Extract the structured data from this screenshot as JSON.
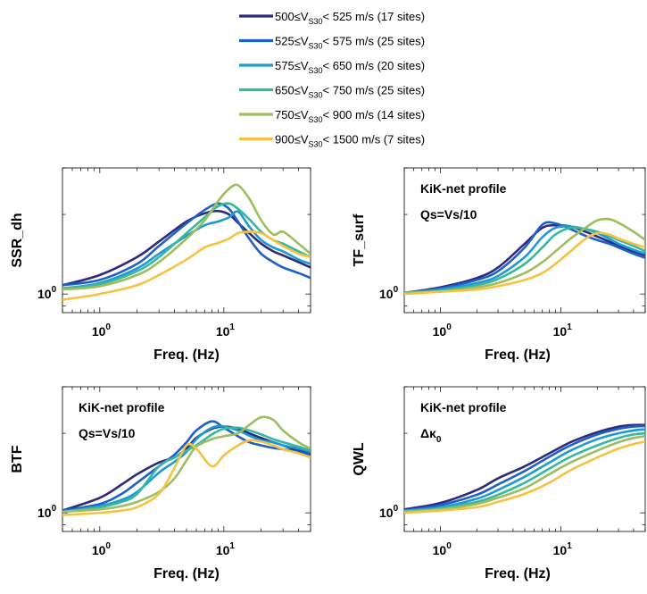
{
  "legend": {
    "entries": [
      {
        "pre": "500≤V",
        "sub": "S30",
        "post": "< 525 m/s (17 sites)"
      },
      {
        "pre": "525≤V",
        "sub": "S30",
        "post": "< 575 m/s (25 sites)"
      },
      {
        "pre": "575≤V",
        "sub": "S30",
        "post": "< 650 m/s (20 sites)"
      },
      {
        "pre": "650≤V",
        "sub": "S30",
        "post": "< 750 m/s (25 sites)"
      },
      {
        "pre": "750≤V",
        "sub": "S30",
        "post": "< 900 m/s (14 sites)"
      },
      {
        "pre": "900≤V",
        "sub": "S30",
        "post": "< 1500 m/s (7 sites)"
      }
    ]
  },
  "colors": [
    "#2e2a7a",
    "#1f5fcc",
    "#1d9ad6",
    "#36b8a0",
    "#9ebd5f",
    "#f5c242"
  ],
  "tick_base": "10",
  "chart_data": [
    {
      "type": "line",
      "ylabel": "SSR_dh",
      "xlabel": "Freq. (Hz)",
      "xscale": "log",
      "yscale": "log",
      "xlim": [
        0.5,
        50
      ],
      "ylim": [
        0.85,
        3.0
      ],
      "xticks": [
        {
          "base": "10",
          "exp": "0",
          "value": 1
        },
        {
          "base": "10",
          "exp": "1",
          "value": 10
        }
      ],
      "yticks": [
        {
          "base": "10",
          "exp": "0",
          "value": 1
        }
      ],
      "annotations": [],
      "x": [
        0.5,
        1,
        2,
        3,
        5,
        7,
        9,
        11,
        13,
        16,
        20,
        25,
        30,
        40,
        50
      ],
      "series": [
        {
          "values": [
            1.08,
            1.18,
            1.38,
            1.58,
            1.88,
            2.02,
            2.06,
            2.0,
            1.86,
            1.7,
            1.55,
            1.45,
            1.4,
            1.32,
            1.26
          ]
        },
        {
          "values": [
            1.08,
            1.13,
            1.3,
            1.52,
            1.85,
            2.08,
            2.2,
            2.1,
            1.88,
            1.62,
            1.42,
            1.32,
            1.26,
            1.2,
            1.15
          ]
        },
        {
          "values": [
            1.05,
            1.1,
            1.25,
            1.42,
            1.66,
            1.82,
            1.88,
            1.95,
            2.05,
            1.8,
            1.6,
            1.5,
            1.45,
            1.35,
            1.3
          ]
        },
        {
          "values": [
            1.05,
            1.09,
            1.22,
            1.38,
            1.7,
            1.95,
            2.15,
            2.2,
            2.1,
            1.92,
            1.72,
            1.6,
            1.55,
            1.45,
            1.38
          ]
        },
        {
          "values": [
            1.04,
            1.07,
            1.18,
            1.32,
            1.62,
            1.9,
            2.25,
            2.5,
            2.58,
            2.3,
            1.9,
            1.68,
            1.72,
            1.55,
            1.42
          ]
        },
        {
          "values": [
            0.95,
            1.0,
            1.08,
            1.18,
            1.35,
            1.5,
            1.56,
            1.62,
            1.7,
            1.72,
            1.7,
            1.6,
            1.52,
            1.42,
            1.38
          ]
        }
      ]
    },
    {
      "type": "line",
      "ylabel": "TF_surf",
      "xlabel": "Freq. (Hz)",
      "xscale": "log",
      "yscale": "log",
      "xlim": [
        0.5,
        50
      ],
      "ylim": [
        0.85,
        3.0
      ],
      "xticks": [
        {
          "base": "10",
          "exp": "0",
          "value": 1
        },
        {
          "base": "10",
          "exp": "1",
          "value": 10
        }
      ],
      "yticks": [
        {
          "base": "10",
          "exp": "0",
          "value": 1
        }
      ],
      "annotations": [
        {
          "text": "KiK-net profile"
        },
        {
          "text": "Qs=Vs/10"
        }
      ],
      "x": [
        0.5,
        1,
        2,
        3,
        5,
        7,
        9,
        12,
        16,
        20,
        25,
        30,
        40,
        50
      ],
      "series": [
        {
          "values": [
            1.01,
            1.06,
            1.15,
            1.26,
            1.55,
            1.78,
            1.82,
            1.8,
            1.72,
            1.65,
            1.58,
            1.52,
            1.45,
            1.4
          ]
        },
        {
          "values": [
            1.01,
            1.05,
            1.13,
            1.22,
            1.5,
            1.83,
            1.85,
            1.76,
            1.66,
            1.6,
            1.55,
            1.5,
            1.42,
            1.37
          ]
        },
        {
          "values": [
            1.01,
            1.04,
            1.1,
            1.17,
            1.38,
            1.64,
            1.78,
            1.8,
            1.76,
            1.7,
            1.62,
            1.55,
            1.47,
            1.42
          ]
        },
        {
          "values": [
            1.01,
            1.03,
            1.08,
            1.14,
            1.3,
            1.5,
            1.68,
            1.78,
            1.76,
            1.72,
            1.66,
            1.6,
            1.52,
            1.45
          ]
        },
        {
          "values": [
            1.01,
            1.02,
            1.06,
            1.1,
            1.2,
            1.32,
            1.45,
            1.62,
            1.78,
            1.9,
            1.92,
            1.86,
            1.72,
            1.6
          ]
        },
        {
          "values": [
            1.0,
            1.02,
            1.04,
            1.07,
            1.13,
            1.2,
            1.3,
            1.45,
            1.62,
            1.7,
            1.68,
            1.62,
            1.55,
            1.5
          ]
        }
      ]
    },
    {
      "type": "line",
      "ylabel": "BTF",
      "xlabel": "Freq. (Hz)",
      "xscale": "log",
      "yscale": "log",
      "xlim": [
        0.5,
        50
      ],
      "ylim": [
        0.85,
        3.0
      ],
      "xticks": [
        {
          "base": "10",
          "exp": "0",
          "value": 1
        },
        {
          "base": "10",
          "exp": "1",
          "value": 10
        }
      ],
      "yticks": [
        {
          "base": "10",
          "exp": "0",
          "value": 1
        }
      ],
      "annotations": [
        {
          "text": "KiK-net profile"
        },
        {
          "text": "Qs=Vs/10"
        }
      ],
      "x": [
        0.5,
        1,
        1.5,
        2,
        3,
        4,
        5,
        6,
        8,
        10,
        13,
        16,
        20,
        25,
        30,
        40,
        50
      ],
      "series": [
        {
          "values": [
            1.02,
            1.14,
            1.28,
            1.4,
            1.55,
            1.62,
            1.75,
            1.92,
            2.08,
            2.12,
            2.08,
            2.0,
            1.92,
            1.85,
            1.8,
            1.72,
            1.68
          ]
        },
        {
          "values": [
            1.02,
            1.08,
            1.18,
            1.3,
            1.5,
            1.66,
            1.85,
            2.05,
            2.22,
            2.1,
            1.95,
            1.85,
            1.8,
            1.76,
            1.74,
            1.7,
            1.66
          ]
        },
        {
          "values": [
            1.01,
            1.06,
            1.12,
            1.2,
            1.42,
            1.56,
            1.7,
            1.9,
            2.1,
            2.12,
            2.05,
            1.96,
            1.88,
            1.85,
            1.8,
            1.75,
            1.7
          ]
        },
        {
          "values": [
            1.01,
            1.05,
            1.1,
            1.18,
            1.5,
            1.62,
            1.72,
            1.8,
            1.98,
            2.08,
            2.1,
            2.05,
            1.98,
            1.9,
            1.85,
            1.78,
            1.72
          ]
        },
        {
          "values": [
            1.01,
            1.03,
            1.06,
            1.1,
            1.2,
            1.35,
            1.58,
            1.78,
            1.9,
            1.95,
            2.0,
            2.15,
            2.3,
            2.25,
            2.05,
            1.85,
            1.75
          ]
        },
        {
          "values": [
            0.98,
            1.0,
            1.02,
            1.05,
            1.18,
            1.48,
            1.8,
            1.75,
            1.5,
            1.65,
            1.8,
            1.88,
            1.86,
            1.8,
            1.74,
            1.68,
            1.62
          ]
        }
      ]
    },
    {
      "type": "line",
      "ylabel": "QWL",
      "xlabel": "Freq. (Hz)",
      "xscale": "log",
      "yscale": "log",
      "xlim": [
        0.5,
        50
      ],
      "ylim": [
        0.85,
        3.0
      ],
      "xticks": [
        {
          "base": "10",
          "exp": "0",
          "value": 1
        },
        {
          "base": "10",
          "exp": "1",
          "value": 10
        }
      ],
      "yticks": [
        {
          "base": "10",
          "exp": "0",
          "value": 1
        }
      ],
      "annotations": [
        {
          "text": "KiK-net profile"
        },
        {
          "text": "Δκ",
          "sub": "0"
        }
      ],
      "x": [
        0.5,
        1,
        2,
        3,
        5,
        8,
        12,
        20,
        30,
        40,
        50
      ],
      "series": [
        {
          "values": [
            1.03,
            1.09,
            1.22,
            1.35,
            1.5,
            1.68,
            1.85,
            2.02,
            2.12,
            2.15,
            2.15
          ]
        },
        {
          "values": [
            1.02,
            1.07,
            1.17,
            1.28,
            1.44,
            1.63,
            1.8,
            1.98,
            2.08,
            2.12,
            2.13
          ]
        },
        {
          "values": [
            1.02,
            1.05,
            1.13,
            1.22,
            1.37,
            1.55,
            1.72,
            1.9,
            2.0,
            2.05,
            2.07
          ]
        },
        {
          "values": [
            1.01,
            1.04,
            1.1,
            1.17,
            1.3,
            1.47,
            1.63,
            1.8,
            1.92,
            1.98,
            2.0
          ]
        },
        {
          "values": [
            1.01,
            1.03,
            1.08,
            1.14,
            1.24,
            1.4,
            1.55,
            1.72,
            1.85,
            1.92,
            1.95
          ]
        },
        {
          "values": [
            1.0,
            1.02,
            1.05,
            1.1,
            1.18,
            1.3,
            1.45,
            1.62,
            1.75,
            1.82,
            1.86
          ]
        }
      ]
    }
  ]
}
